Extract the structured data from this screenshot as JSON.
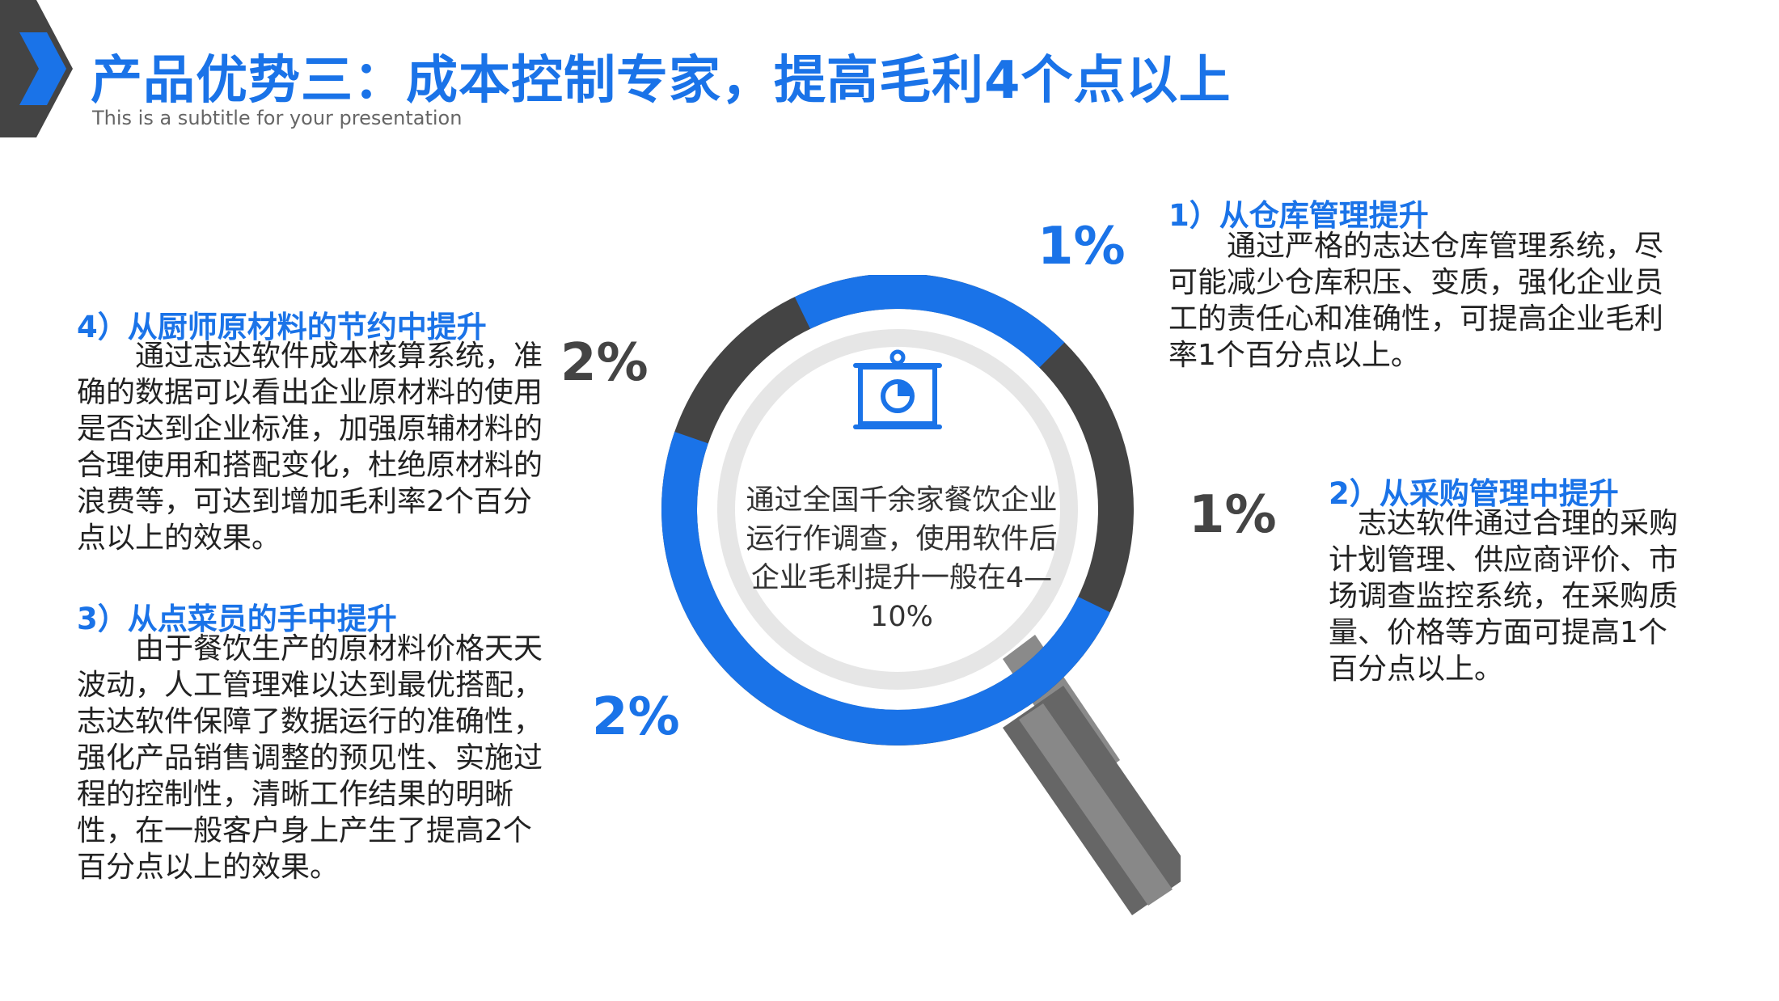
{
  "header": {
    "title": "产品优势三：成本控制专家，提高毛利4个点以上",
    "subtitle": "This is a subtitle for your presentation"
  },
  "center": {
    "text": "通过全国千余家餐饮企业运行作调查，使用软件后企业毛利提升一般在4—10%"
  },
  "sections": [
    {
      "heading": "1）从仓库管理提升",
      "body": "通过严格的志达仓库管理系统，尽可能减少仓库积压、变质，强化企业员工的责任心和准确性，可提高企业毛利率1个百分点以上。",
      "percent": "1%"
    },
    {
      "heading": "2）从采购管理中提升",
      "body": "志达软件通过合理的采购计划管理、供应商评价、市场调查监控系统，在采购质量、价格等方面可提高1个百分点以上。",
      "percent": "1%"
    },
    {
      "heading": "3）从点菜员的手中提升",
      "body": "由于餐饮生产的原材料价格天天波动，人工管理难以达到最优搭配，志达软件保障了数据运行的准确性，强化产品销售调整的预见性、实施过程的控制性，清晰工作结果的明晰性，在一般客户身上产生了提高2个百分点以上的效果。",
      "percent": "2%"
    },
    {
      "heading": "4）从厨师原材料的节约中提升",
      "body": "通过志达软件成本核算系统，准确的数据可以看出企业原材料的使用是否达到企业标准，加强原辅材料的合理使用和搭配变化，杜绝原材料的浪费等，可达到增加毛利率2个百分点以上的效果。",
      "percent": "2%"
    }
  ],
  "colors": {
    "accent": "#1a73e8",
    "dark_gray": "#444444",
    "light_gray": "#e6e6e6",
    "handle_gray": "#777777"
  },
  "icons": {
    "corner": "chevron-right-icon",
    "center": "presentation-board-icon"
  }
}
